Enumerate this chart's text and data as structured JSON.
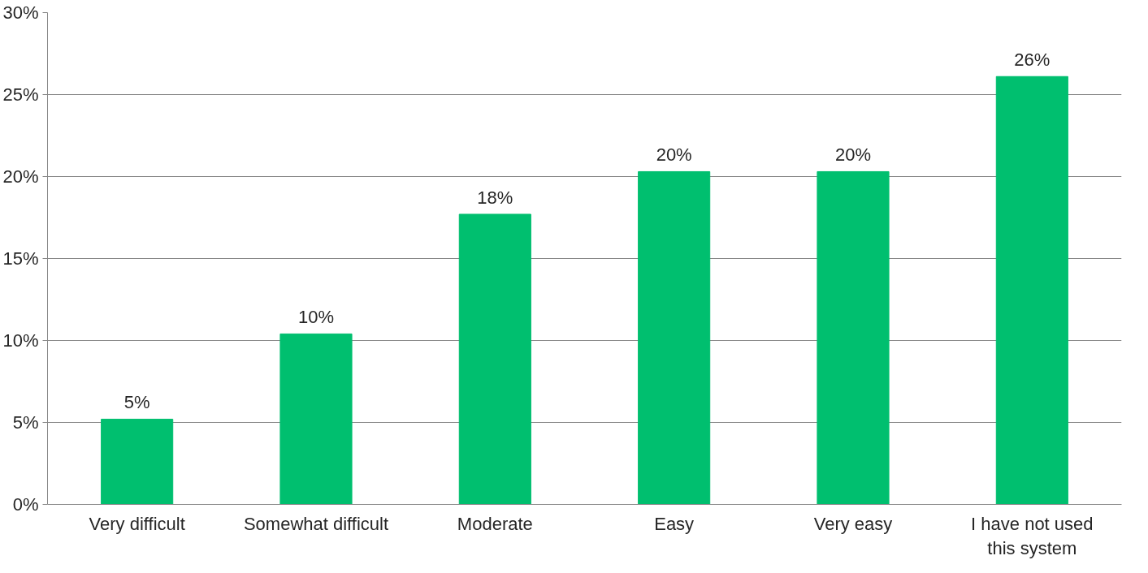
{
  "chart_data": {
    "type": "bar",
    "categories": [
      "Very difficult",
      "Somewhat difficult",
      "Moderate",
      "Easy",
      "Very easy",
      "I have not used this system"
    ],
    "values": [
      5.2,
      10.4,
      17.7,
      20.3,
      20.3,
      26.1
    ],
    "value_labels": [
      "5%",
      "10%",
      "18%",
      "20%",
      "20%",
      "26%"
    ],
    "color": "#00bf6f",
    "ylim": [
      0,
      30
    ],
    "yticks": [
      {
        "value": 0,
        "label": "0%"
      },
      {
        "value": 5,
        "label": "5%"
      },
      {
        "value": 10,
        "label": "10%"
      },
      {
        "value": 15,
        "label": "15%"
      },
      {
        "value": 20,
        "label": "20%"
      },
      {
        "value": 25,
        "label": "25%"
      },
      {
        "value": 30,
        "label": "30%"
      }
    ],
    "grid": "y"
  }
}
